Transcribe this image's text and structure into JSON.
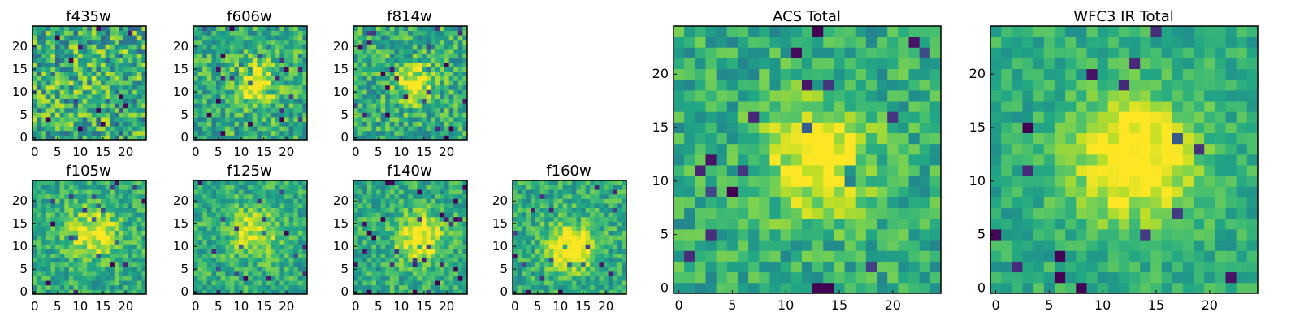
{
  "chart_data": [
    {
      "type": "heatmap",
      "title": "f435w",
      "colormap": "viridis",
      "rows": 25,
      "cols": 25,
      "seed": 11,
      "center": [
        13,
        12
      ],
      "sigma": 4,
      "amp": 0.05,
      "noise": 0.6,
      "xticks": [
        0,
        5,
        10,
        15,
        20
      ],
      "yticks": [
        0,
        5,
        10,
        15,
        20
      ],
      "grid": false
    },
    {
      "type": "heatmap",
      "title": "f606w",
      "colormap": "viridis",
      "rows": 25,
      "cols": 25,
      "seed": 23,
      "center": [
        13,
        12
      ],
      "sigma": 3.5,
      "amp": 0.35,
      "noise": 0.45,
      "xticks": [
        0,
        5,
        10,
        15,
        20
      ],
      "yticks": [
        0,
        5,
        10,
        15,
        20
      ],
      "grid": false
    },
    {
      "type": "heatmap",
      "title": "f814w",
      "colormap": "viridis",
      "rows": 25,
      "cols": 25,
      "seed": 37,
      "center": [
        13,
        12
      ],
      "sigma": 3,
      "amp": 0.4,
      "noise": 0.45,
      "xticks": [
        0,
        5,
        10,
        15,
        20
      ],
      "yticks": [
        0,
        5,
        10,
        15,
        20
      ],
      "grid": false
    },
    {
      "type": "heatmap",
      "title": "f105w",
      "colormap": "viridis",
      "rows": 25,
      "cols": 25,
      "seed": 41,
      "center": [
        13,
        13
      ],
      "sigma": 4,
      "amp": 0.35,
      "noise": 0.35,
      "xticks": [
        0,
        5,
        10,
        15,
        20
      ],
      "yticks": [
        0,
        5,
        10,
        15,
        20
      ],
      "grid": false
    },
    {
      "type": "heatmap",
      "title": "f125w",
      "colormap": "viridis",
      "rows": 25,
      "cols": 25,
      "seed": 53,
      "center": [
        13,
        13
      ],
      "sigma": 4,
      "amp": 0.3,
      "noise": 0.35,
      "xticks": [
        0,
        5,
        10,
        15,
        20
      ],
      "yticks": [
        0,
        5,
        10,
        15,
        20
      ],
      "grid": false
    },
    {
      "type": "heatmap",
      "title": "f140w",
      "colormap": "viridis",
      "rows": 25,
      "cols": 25,
      "seed": 67,
      "center": [
        14,
        12
      ],
      "sigma": 3.5,
      "amp": 0.45,
      "noise": 0.35,
      "xticks": [
        0,
        5,
        10,
        15,
        20
      ],
      "yticks": [
        0,
        5,
        10,
        15,
        20
      ],
      "grid": false
    },
    {
      "type": "heatmap",
      "title": "f160w",
      "colormap": "viridis",
      "rows": 25,
      "cols": 25,
      "seed": 79,
      "center": [
        12,
        10
      ],
      "sigma": 3.5,
      "amp": 0.5,
      "noise": 0.35,
      "xticks": [
        0,
        5,
        10,
        15,
        20
      ],
      "yticks": [
        0,
        5,
        10,
        15,
        20
      ],
      "grid": false
    },
    {
      "type": "heatmap",
      "title": "ACS Total",
      "colormap": "viridis",
      "rows": 25,
      "cols": 25,
      "seed": 97,
      "center": [
        13,
        12
      ],
      "sigma": 3.5,
      "amp": 0.45,
      "noise": 0.35,
      "xticks": [
        0,
        5,
        10,
        15,
        20
      ],
      "yticks": [
        0,
        5,
        10,
        15,
        20
      ],
      "grid": false
    },
    {
      "type": "heatmap",
      "title": "WFC3 IR Total",
      "colormap": "viridis",
      "rows": 25,
      "cols": 25,
      "seed": 113,
      "center": [
        13,
        12
      ],
      "sigma": 4,
      "amp": 0.5,
      "noise": 0.25,
      "xticks": [
        0,
        5,
        10,
        15,
        20
      ],
      "yticks": [
        0,
        5,
        10,
        15,
        20
      ],
      "grid": false
    }
  ]
}
